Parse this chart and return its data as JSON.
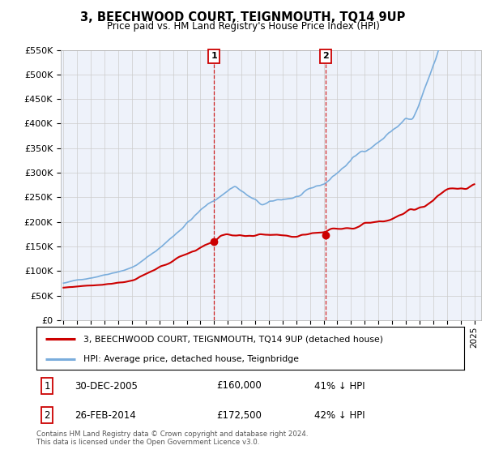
{
  "title": "3, BEECHWOOD COURT, TEIGNMOUTH, TQ14 9UP",
  "subtitle": "Price paid vs. HM Land Registry's House Price Index (HPI)",
  "ylim": [
    0,
    550000
  ],
  "yticks": [
    0,
    50000,
    100000,
    150000,
    200000,
    250000,
    300000,
    350000,
    400000,
    450000,
    500000,
    550000
  ],
  "ytick_labels": [
    "£0",
    "£50K",
    "£100K",
    "£150K",
    "£200K",
    "£250K",
    "£300K",
    "£350K",
    "£400K",
    "£450K",
    "£500K",
    "£550K"
  ],
  "property_color": "#cc0000",
  "hpi_color": "#7aaddc",
  "vline_color": "#cc0000",
  "transaction1_date_num": 2006.0,
  "transaction1_price": 160000,
  "transaction2_date_num": 2014.17,
  "transaction2_price": 172500,
  "legend_property": "3, BEECHWOOD COURT, TEIGNMOUTH, TQ14 9UP (detached house)",
  "legend_hpi": "HPI: Average price, detached house, Teignbridge",
  "row1_date": "30-DEC-2005",
  "row1_price": "£160,000",
  "row1_hpi": "41% ↓ HPI",
  "row2_date": "26-FEB-2014",
  "row2_price": "£172,500",
  "row2_hpi": "42% ↓ HPI",
  "footer": "Contains HM Land Registry data © Crown copyright and database right 2024.\nThis data is licensed under the Open Government Licence v3.0.",
  "bg_color": "#ffffff",
  "plot_bg_color": "#eef2fa",
  "grid_color": "#cccccc",
  "xlim_left": 1994.8,
  "xlim_right": 2025.5
}
